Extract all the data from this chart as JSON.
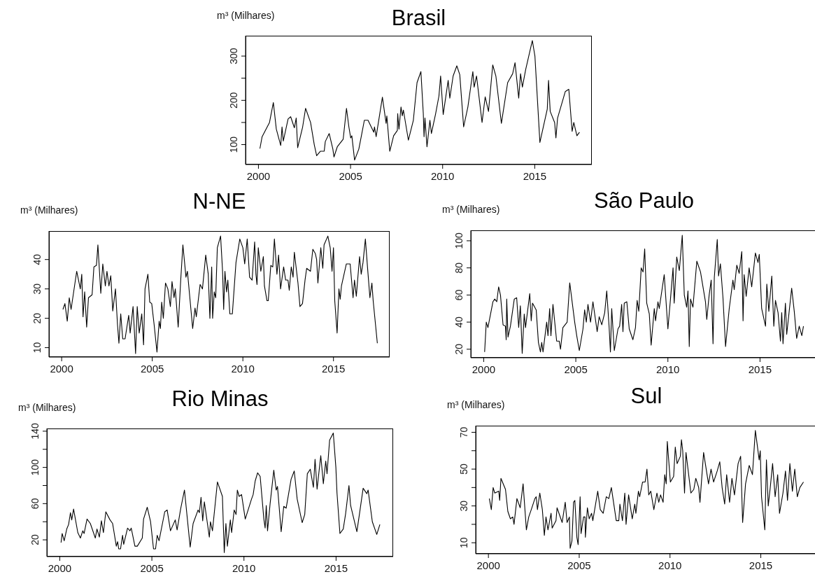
{
  "chart_data": [
    {
      "type": "line",
      "title": "Brasil",
      "ylabel": "m³ (Milhares)",
      "color": "#000000",
      "xlim": [
        1999.3,
        2018.1
      ],
      "xticks": [
        2000,
        2005,
        2010,
        2015
      ],
      "ylim": [
        55,
        346
      ],
      "yticks": [
        100,
        {
          "value": 150,
          "label": null
        },
        200,
        {
          "value": 250,
          "label": null
        },
        300
      ],
      "x": [
        2000.08,
        2000.2,
        2000.6,
        2000.81,
        2000.97,
        2001.21,
        2001.28,
        2001.35,
        2001.61,
        2001.75,
        2001.95,
        2002.05,
        2002.13,
        2002.4,
        2002.56,
        2002.83,
        2003.03,
        2003.16,
        2003.36,
        2003.57,
        2003.63,
        2003.84,
        2004.04,
        2004.1,
        2004.28,
        2004.6,
        2004.78,
        2004.91,
        2005.01,
        2005.07,
        2005.22,
        2005.45,
        2005.59,
        2005.75,
        2005.95,
        2006.26,
        2006.3,
        2006.39,
        2006.73,
        2006.93,
        2006.97,
        2007.13,
        2007.34,
        2007.54,
        2007.56,
        2007.63,
        2007.74,
        2007.81,
        2007.87,
        2008.14,
        2008.41,
        2008.61,
        2008.82,
        2008.95,
        2008.99,
        2009.04,
        2009.15,
        2009.31,
        2009.39,
        2009.62,
        2009.8,
        2009.89,
        2010.03,
        2010.3,
        2010.39,
        2010.57,
        2010.77,
        2010.93,
        2011.14,
        2011.37,
        2011.64,
        2011.71,
        2011.84,
        2012.14,
        2012.31,
        2012.49,
        2012.72,
        2012.89,
        2013.19,
        2013.53,
        2013.8,
        2013.93,
        2014.13,
        2014.23,
        2014.33,
        2014.51,
        2014.87,
        2015.01,
        2015.28,
        2015.68,
        2015.75,
        2015.84,
        2016.08,
        2016.15,
        2016.24,
        2016.66,
        2016.85,
        2017.03,
        2017.12,
        2017.29,
        2017.43
      ],
      "values": [
        91,
        118,
        150,
        195,
        135,
        98,
        140,
        108,
        158,
        163,
        138,
        160,
        93,
        140,
        182,
        150,
        100,
        75,
        85,
        85,
        107,
        125,
        90,
        72,
        95,
        112,
        182,
        140,
        115,
        120,
        65,
        90,
        120,
        155,
        155,
        128,
        140,
        118,
        207,
        148,
        165,
        85,
        120,
        132,
        170,
        135,
        185,
        165,
        178,
        110,
        155,
        240,
        265,
        170,
        118,
        160,
        95,
        155,
        125,
        170,
        210,
        255,
        168,
        245,
        205,
        255,
        278,
        258,
        140,
        185,
        265,
        230,
        255,
        150,
        208,
        175,
        280,
        255,
        148,
        240,
        260,
        285,
        205,
        260,
        230,
        270,
        335,
        300,
        105,
        180,
        245,
        175,
        150,
        115,
        160,
        220,
        225,
        130,
        150,
        120,
        128
      ]
    },
    {
      "type": "line",
      "title": "N-NE",
      "ylabel": "m³ (Milhares)",
      "color": "#000000",
      "xlim": [
        1999.3,
        2018.1
      ],
      "xticks": [
        2000,
        2005,
        2010,
        2015
      ],
      "ylim": [
        6.8,
        49.7
      ],
      "yticks": [
        10,
        20,
        30,
        40
      ],
      "x": [
        2000.07,
        2000.18,
        2000.31,
        2000.42,
        2000.52,
        2000.83,
        2001.03,
        2001.11,
        2001.18,
        2001.27,
        2001.38,
        2001.48,
        2001.68,
        2001.78,
        2001.92,
        2002.0,
        2002.16,
        2002.27,
        2002.41,
        2002.5,
        2002.61,
        2002.71,
        2002.82,
        2002.97,
        2003.08,
        2003.16,
        2003.26,
        2003.37,
        2003.5,
        2003.7,
        2003.78,
        2003.94,
        2004.08,
        2004.17,
        2004.28,
        2004.42,
        2004.52,
        2004.6,
        2004.76,
        2004.86,
        2004.97,
        2005.1,
        2005.26,
        2005.38,
        2005.45,
        2005.52,
        2005.61,
        2005.73,
        2005.86,
        2006.0,
        2006.09,
        2006.2,
        2006.27,
        2006.43,
        2006.57,
        2006.69,
        2006.86,
        2006.94,
        2007.23,
        2007.36,
        2007.43,
        2007.64,
        2007.77,
        2007.95,
        2008.09,
        2008.18,
        2008.28,
        2008.33,
        2008.42,
        2008.5,
        2008.59,
        2008.77,
        2008.88,
        2008.94,
        2009.01,
        2009.1,
        2009.17,
        2009.28,
        2009.42,
        2009.62,
        2009.83,
        2010.0,
        2010.1,
        2010.24,
        2010.37,
        2010.51,
        2010.65,
        2010.72,
        2010.78,
        2010.85,
        2010.99,
        2011.13,
        2011.19,
        2011.33,
        2011.4,
        2011.54,
        2011.65,
        2011.74,
        2011.88,
        2011.97,
        2012.08,
        2012.25,
        2012.36,
        2012.49,
        2012.56,
        2012.67,
        2012.77,
        2012.84,
        2013.04,
        2013.15,
        2013.29,
        2013.43,
        2013.52,
        2013.73,
        2013.86,
        2014.0,
        2014.07,
        2014.14,
        2014.3,
        2014.41,
        2014.48,
        2014.69,
        2014.82,
        2014.92,
        2015.0,
        2015.07,
        2015.2,
        2015.3,
        2015.37,
        2015.44,
        2015.71,
        2015.92,
        2016.08,
        2016.16,
        2016.26,
        2016.44,
        2016.53,
        2016.63,
        2016.76,
        2016.87,
        2017.01,
        2017.12,
        2017.19,
        2017.42
      ],
      "values": [
        23,
        25,
        19,
        27,
        23,
        36,
        30,
        35,
        20.5,
        29,
        17,
        27,
        28,
        37.5,
        38,
        45,
        28.5,
        38.5,
        31,
        36,
        31,
        34.5,
        22.5,
        30,
        18,
        11.5,
        21.5,
        13,
        13,
        21,
        15,
        24,
        8,
        24,
        15,
        21.5,
        11,
        30,
        35,
        25.5,
        25,
        18,
        8.5,
        19,
        16.5,
        25.5,
        20,
        32,
        30,
        24,
        32.5,
        27,
        30,
        17,
        33,
        45,
        34,
        36,
        16.5,
        23.5,
        20.5,
        31.5,
        30,
        41.5,
        35,
        20,
        37.5,
        20,
        29,
        27,
        44,
        48,
        36,
        23,
        36,
        29,
        33,
        21.5,
        21.5,
        39,
        47,
        44,
        38.5,
        47,
        34,
        33,
        46,
        35,
        31.5,
        44,
        36,
        41,
        31,
        26,
        26,
        38,
        37.5,
        47,
        35,
        41.5,
        30,
        37.5,
        33,
        33,
        29.5,
        37.5,
        34,
        42.5,
        32,
        24,
        25,
        33,
        37,
        36,
        43.5,
        42,
        40,
        32,
        44,
        37,
        45,
        48,
        44,
        36,
        44,
        26,
        15,
        30,
        26.5,
        31,
        38.5,
        38.5,
        27,
        33,
        27.5,
        41,
        35,
        39,
        47,
        38,
        27,
        32,
        26,
        11.5
      ]
    },
    {
      "type": "line",
      "title": "São Paulo",
      "ylabel": "m³ (Milhares)",
      "color": "#000000",
      "xlim": [
        1999.3,
        2018.1
      ],
      "xticks": [
        2000,
        2005,
        2010,
        2015
      ],
      "ylim": [
        13.7,
        107.7
      ],
      "yticks": [
        20,
        40,
        60,
        80,
        100
      ],
      "x": [
        2000.05,
        2000.14,
        2000.23,
        2000.5,
        2000.6,
        2000.71,
        2000.81,
        2000.91,
        2001.05,
        2001.18,
        2001.22,
        2001.25,
        2001.32,
        2001.45,
        2001.66,
        2001.79,
        2001.9,
        2001.99,
        2002.09,
        2002.2,
        2002.27,
        2002.5,
        2002.58,
        2002.65,
        2002.85,
        2002.97,
        2003.08,
        2003.15,
        2003.22,
        2003.42,
        2003.49,
        2003.58,
        2003.65,
        2003.76,
        2003.96,
        2004.1,
        2004.17,
        2004.3,
        2004.53,
        2004.67,
        2004.94,
        2005.05,
        2005.19,
        2005.39,
        2005.48,
        2005.57,
        2005.66,
        2005.8,
        2005.93,
        2006.16,
        2006.27,
        2006.41,
        2006.57,
        2006.68,
        2006.81,
        2006.88,
        2006.95,
        2007.09,
        2007.29,
        2007.38,
        2007.49,
        2007.56,
        2007.63,
        2007.77,
        2007.9,
        2008.1,
        2008.24,
        2008.33,
        2008.42,
        2008.55,
        2008.65,
        2008.74,
        2008.85,
        2008.99,
        2009.09,
        2009.26,
        2009.33,
        2009.46,
        2009.53,
        2009.8,
        2010.0,
        2010.14,
        2010.28,
        2010.34,
        2010.48,
        2010.62,
        2010.78,
        2010.89,
        2011.02,
        2011.09,
        2011.16,
        2011.23,
        2011.36,
        2011.57,
        2011.77,
        2012.04,
        2012.11,
        2012.24,
        2012.35,
        2012.45,
        2012.52,
        2012.68,
        2012.75,
        2012.85,
        2012.99,
        2013.13,
        2013.33,
        2013.53,
        2013.6,
        2013.74,
        2013.87,
        2014.01,
        2014.08,
        2014.14,
        2014.25,
        2014.41,
        2014.55,
        2014.75,
        2014.89,
        2014.96,
        2015.09,
        2015.3,
        2015.37,
        2015.48,
        2015.64,
        2015.75,
        2015.84,
        2015.98,
        2016.11,
        2016.18,
        2016.25,
        2016.38,
        2016.45,
        2016.72,
        2016.86,
        2016.99,
        2017.13,
        2017.27,
        2017.36
      ],
      "values": [
        18,
        40,
        36,
        55,
        57,
        55,
        66,
        60,
        38,
        37,
        27,
        57,
        29,
        37,
        57,
        58,
        36,
        52,
        17,
        46,
        36,
        61,
        41,
        54,
        49,
        25,
        18,
        25,
        18,
        40,
        30,
        50,
        30,
        53,
        26,
        26,
        20,
        36,
        40,
        69,
        40,
        30,
        19,
        35,
        49,
        40,
        53,
        40,
        55,
        33,
        44,
        38,
        47,
        63,
        36,
        18,
        50,
        19,
        35,
        37,
        53,
        33,
        54,
        55,
        35,
        27,
        36,
        56,
        48,
        80,
        77,
        94,
        54,
        46,
        23,
        50,
        41,
        55,
        50,
        75,
        35,
        57,
        80,
        54,
        88,
        78,
        104,
        60,
        51,
        63,
        22,
        57,
        51,
        85,
        77,
        55,
        42,
        60,
        71,
        24,
        73,
        101,
        74,
        83,
        58,
        22,
        50,
        71,
        64,
        82,
        76,
        92,
        41,
        75,
        59,
        80,
        66,
        91,
        84,
        90,
        50,
        37,
        68,
        48,
        74,
        37,
        56,
        47,
        26,
        47,
        24,
        54,
        31,
        65,
        48,
        28,
        37,
        30,
        37
      ]
    },
    {
      "type": "line",
      "title": "Rio Minas",
      "ylabel": "m³ (Milhares)",
      "color": "#000000",
      "xlim": [
        1999.3,
        2018.1
      ],
      "xticks": [
        2000,
        2005,
        2010,
        2015
      ],
      "ylim": [
        1.5,
        143
      ],
      "yticks": [
        20,
        {
          "value": 40,
          "label": null
        },
        60,
        {
          "value": 80,
          "label": null
        },
        100,
        {
          "value": 120,
          "label": null
        },
        140
      ],
      "x": [
        2000.07,
        2000.13,
        2000.24,
        2000.38,
        2000.48,
        2000.58,
        2000.65,
        2000.75,
        2000.98,
        2001.12,
        2001.25,
        2001.32,
        2001.48,
        2001.66,
        2001.93,
        2002.02,
        2002.15,
        2002.26,
        2002.37,
        2002.5,
        2002.73,
        2002.87,
        2003.07,
        2003.14,
        2003.2,
        2003.3,
        2003.41,
        2003.47,
        2003.68,
        2003.81,
        2003.88,
        2004.08,
        2004.21,
        2004.48,
        2004.55,
        2004.75,
        2004.93,
        2005.09,
        2005.2,
        2005.29,
        2005.39,
        2005.7,
        2005.83,
        2006.01,
        2006.27,
        2006.37,
        2006.57,
        2006.77,
        2007.08,
        2007.24,
        2007.51,
        2007.58,
        2007.67,
        2007.76,
        2007.85,
        2008.12,
        2008.18,
        2008.29,
        2008.56,
        2008.83,
        2008.93,
        2009.02,
        2009.1,
        2009.26,
        2009.33,
        2009.47,
        2009.57,
        2009.64,
        2009.74,
        2009.87,
        2010.07,
        2010.41,
        2010.5,
        2010.61,
        2010.74,
        2010.88,
        2011.08,
        2011.15,
        2011.21,
        2011.28,
        2011.42,
        2011.62,
        2011.75,
        2011.82,
        2012.02,
        2012.16,
        2012.29,
        2012.56,
        2012.73,
        2012.89,
        2013.16,
        2013.3,
        2013.44,
        2013.6,
        2013.77,
        2013.86,
        2013.97,
        2014.17,
        2014.31,
        2014.44,
        2014.51,
        2014.65,
        2014.85,
        2014.99,
        2015.05,
        2015.21,
        2015.39,
        2015.52,
        2015.7,
        2015.79,
        2016.06,
        2016.13,
        2016.26,
        2016.47,
        2016.67,
        2016.74,
        2016.97,
        2017.21,
        2017.38
      ],
      "values": [
        17,
        27,
        19,
        32,
        37,
        50,
        42,
        54,
        28,
        22,
        30,
        27,
        43,
        38,
        22,
        32,
        23,
        41,
        28,
        51,
        42,
        38,
        13,
        18,
        10,
        10,
        25,
        15,
        33,
        30,
        33,
        13,
        13,
        22,
        43,
        56,
        40,
        10,
        10,
        25,
        19,
        51,
        53,
        30,
        42,
        31,
        55,
        75,
        12,
        38,
        53,
        50,
        67,
        41,
        62,
        23,
        40,
        30,
        84,
        68,
        6,
        38,
        13,
        42,
        28,
        53,
        48,
        75,
        68,
        70,
        43,
        65,
        70,
        85,
        94,
        90,
        43,
        33,
        58,
        30,
        60,
        97,
        75,
        79,
        29,
        57,
        55,
        87,
        96,
        65,
        39,
        48,
        93,
        98,
        78,
        109,
        76,
        113,
        82,
        107,
        93,
        130,
        138,
        100,
        72,
        27,
        32,
        49,
        80,
        58,
        35,
        29,
        47,
        77,
        71,
        75,
        40,
        26,
        37
      ]
    },
    {
      "type": "line",
      "title": "Sul",
      "ylabel": "m³ (Milhares)",
      "color": "#000000",
      "xlim": [
        1999.3,
        2018.1
      ],
      "xticks": [
        2000,
        2005,
        2010,
        2015
      ],
      "ylim": [
        4,
        73.6
      ],
      "yticks": [
        10,
        {
          "value": 20,
          "label": null
        },
        30,
        {
          "value": 40,
          "label": null
        },
        50,
        {
          "value": 60,
          "label": null
        },
        70
      ],
      "x": [
        2000.05,
        2000.16,
        2000.26,
        2000.35,
        2000.57,
        2000.62,
        2000.69,
        2000.94,
        2001.07,
        2001.21,
        2001.34,
        2001.41,
        2001.57,
        2001.75,
        2001.91,
        2002.09,
        2002.22,
        2002.36,
        2002.56,
        2002.63,
        2002.7,
        2002.83,
        2002.97,
        2003.08,
        2003.17,
        2003.28,
        2003.45,
        2003.51,
        2003.72,
        2003.78,
        2003.92,
        2004.06,
        2004.23,
        2004.33,
        2004.46,
        2004.5,
        2004.6,
        2004.69,
        2004.76,
        2004.87,
        2004.94,
        2005.05,
        2005.1,
        2005.24,
        2005.32,
        2005.34,
        2005.45,
        2005.55,
        2005.68,
        2005.75,
        2006.02,
        2006.16,
        2006.32,
        2006.49,
        2006.63,
        2006.77,
        2007.04,
        2007.18,
        2007.24,
        2007.38,
        2007.51,
        2007.58,
        2007.72,
        2007.92,
        2008.06,
        2008.12,
        2008.26,
        2008.33,
        2008.49,
        2008.63,
        2008.73,
        2008.83,
        2008.94,
        2009.11,
        2009.28,
        2009.38,
        2009.48,
        2009.62,
        2009.71,
        2009.79,
        2009.85,
        2010.02,
        2010.2,
        2010.29,
        2010.39,
        2010.57,
        2010.63,
        2010.7,
        2010.8,
        2010.88,
        2011.15,
        2011.31,
        2011.42,
        2011.58,
        2011.65,
        2011.85,
        2012.12,
        2012.26,
        2012.4,
        2012.6,
        2012.74,
        2012.87,
        2013.01,
        2013.12,
        2013.28,
        2013.41,
        2013.55,
        2013.75,
        2013.89,
        2014.0,
        2014.16,
        2014.36,
        2014.54,
        2014.7,
        2014.91,
        2014.97,
        2015.04,
        2015.22,
        2015.31,
        2015.41,
        2015.52,
        2015.65,
        2015.79,
        2015.93,
        2016.03,
        2016.22,
        2016.36,
        2016.47,
        2016.6,
        2016.74,
        2016.87,
        2017.01,
        2017.15,
        2017.35
      ],
      "values": [
        34,
        28,
        40,
        37,
        38,
        33,
        45,
        39,
        27,
        23,
        24,
        20,
        34,
        29,
        42,
        17,
        24,
        28,
        34,
        35,
        28,
        37,
        28,
        14,
        24,
        17,
        26,
        18,
        22,
        29,
        25,
        21,
        32,
        21,
        24,
        7,
        11,
        32,
        33,
        13,
        9,
        35,
        15,
        24,
        24,
        13,
        29,
        23,
        26,
        22,
        38,
        28,
        26,
        35,
        34,
        40,
        22,
        22,
        31,
        22,
        37,
        20,
        36,
        23,
        31,
        26,
        38,
        35,
        43,
        43,
        50,
        36,
        38,
        28,
        37,
        32,
        36,
        32,
        47,
        42,
        65,
        43,
        46,
        62,
        53,
        57,
        66,
        60,
        37,
        59,
        37,
        39,
        45,
        40,
        32,
        59,
        42,
        50,
        43,
        49,
        54,
        40,
        31,
        47,
        32,
        45,
        36,
        53,
        57,
        21,
        42,
        52,
        47,
        71,
        55,
        60,
        35,
        17,
        55,
        30,
        40,
        53,
        35,
        47,
        26,
        37,
        49,
        33,
        53,
        38,
        50,
        35,
        40,
        43
      ]
    }
  ]
}
